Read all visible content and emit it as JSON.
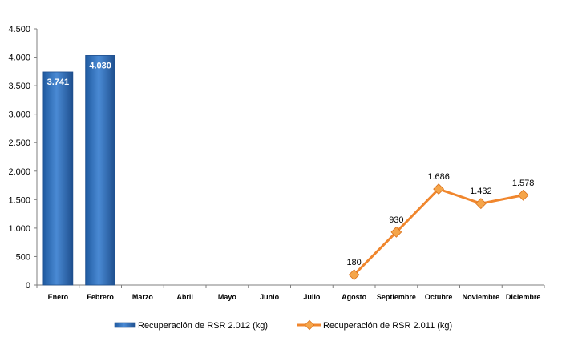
{
  "chart_data": {
    "type": "bar",
    "categories": [
      "Enero",
      "Febrero",
      "Marzo",
      "Abril",
      "Mayo",
      "Junio",
      "Julio",
      "Agosto",
      "Septiembre",
      "Octubre",
      "Noviembre",
      "Diciembre"
    ],
    "series": [
      {
        "name": "Recuperación de RSR 2.012 (kg)",
        "type": "bar",
        "values": [
          3741,
          4030,
          null,
          null,
          null,
          null,
          null,
          null,
          null,
          null,
          null,
          null
        ],
        "labels": [
          "3.741",
          "4.030",
          "",
          "",
          "",
          "",
          "",
          "",
          "",
          "",
          "",
          ""
        ],
        "color": "#2E6DB4"
      },
      {
        "name": "Recuperación de RSR 2.011 (kg)",
        "type": "line",
        "values": [
          null,
          null,
          null,
          null,
          null,
          null,
          null,
          180,
          930,
          1686,
          1432,
          1578
        ],
        "labels": [
          "",
          "",
          "",
          "",
          "",
          "",
          "",
          "180",
          "930",
          "1.686",
          "1.432",
          "1.578"
        ],
        "color": "#F0862D"
      }
    ],
    "ylim": [
      0,
      4500
    ],
    "yticks": [
      0,
      500,
      1000,
      1500,
      2000,
      2500,
      3000,
      3500,
      4000,
      4500
    ],
    "ytick_labels": [
      "0",
      "500",
      "1.000",
      "1.500",
      "2.000",
      "2.500",
      "3.000",
      "3.500",
      "4.000",
      "4.500"
    ],
    "grid": false,
    "legend": "bottom"
  }
}
